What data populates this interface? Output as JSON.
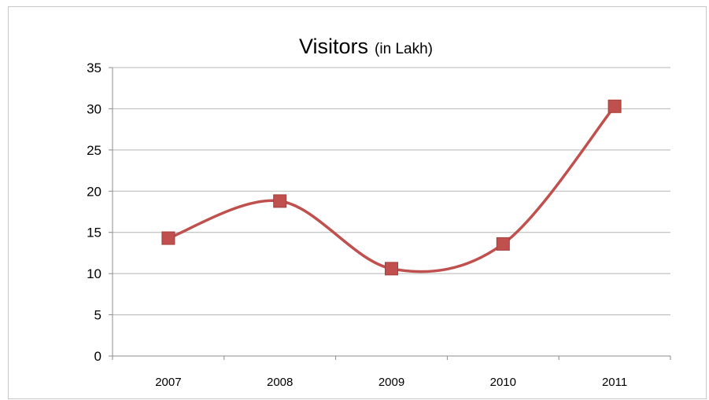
{
  "chart_data": {
    "type": "line",
    "title": "Visitors",
    "subtitle": "(in Lakh)",
    "xlabel": "",
    "ylabel": "",
    "categories": [
      "2007",
      "2008",
      "2009",
      "2010",
      "2011"
    ],
    "series": [
      {
        "values": [
          14.3,
          18.8,
          10.6,
          13.6,
          30.3
        ],
        "color": "#c0504d"
      }
    ],
    "ylim": [
      0,
      35
    ],
    "yticks": [
      "0",
      "5",
      "10",
      "15",
      "20",
      "25",
      "30",
      "35"
    ],
    "grid": true,
    "smooth": true,
    "marker": "square",
    "legend": "none"
  }
}
